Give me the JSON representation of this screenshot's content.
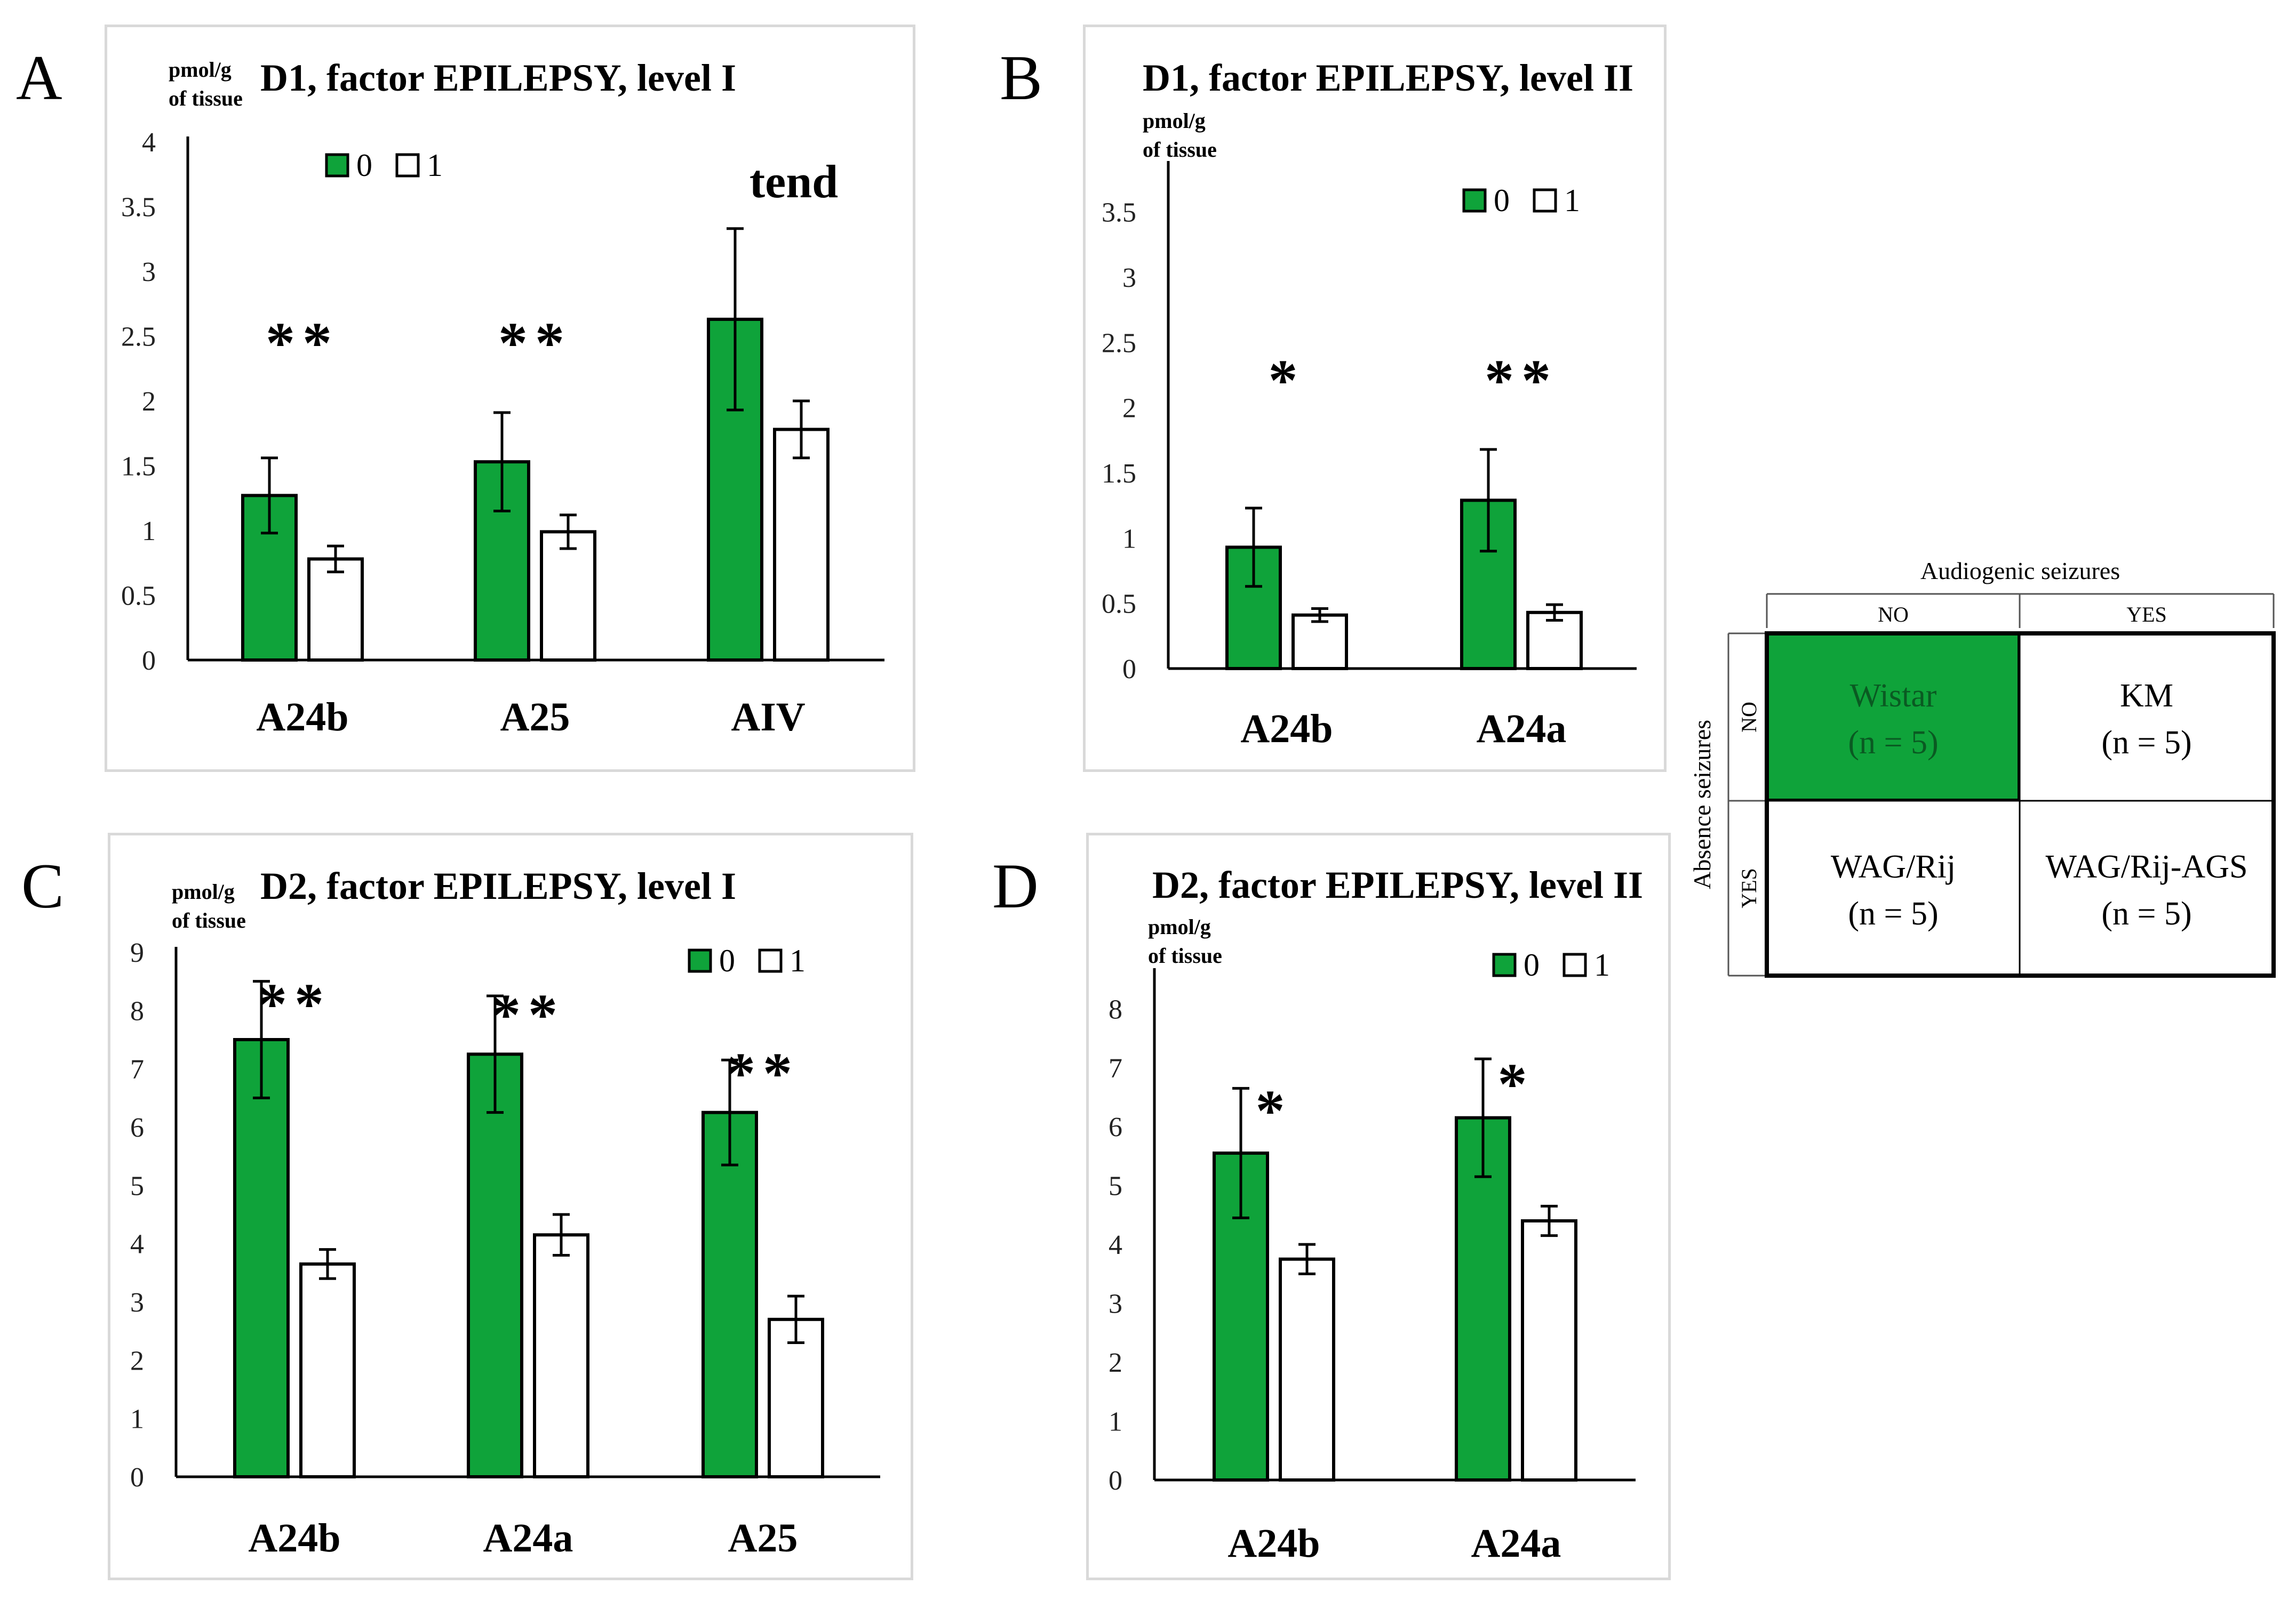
{
  "chart_data": [
    {
      "panel": "A",
      "type": "bar",
      "title": "D1, factor EPILEPSY, level I",
      "ylabel": "pmol/g of tissue",
      "ylabel_lines": [
        "pmol/g",
        "of tissue"
      ],
      "ylim": [
        0,
        4
      ],
      "yticks": [
        "0",
        "0.5",
        "1",
        "1.5",
        "2",
        "2.5",
        "3",
        "3.5",
        "4"
      ],
      "categories": [
        "A24b",
        "A25",
        "AIV"
      ],
      "series": [
        {
          "name": "0",
          "values": [
            1.27,
            1.53,
            2.63
          ],
          "errors": [
            0.29,
            0.38,
            0.7
          ]
        },
        {
          "name": "1",
          "values": [
            0.78,
            0.99,
            1.78
          ],
          "errors": [
            0.1,
            0.13,
            0.22
          ]
        }
      ],
      "annotations": [
        "**",
        "**",
        "tend"
      ],
      "legend": [
        "0",
        "1"
      ],
      "legend_position": "top-left"
    },
    {
      "panel": "B",
      "type": "bar",
      "title": "D1, factor EPILEPSY, level II",
      "ylabel": "pmol/g of tissue",
      "ylabel_lines": [
        "pmol/g",
        "of tissue"
      ],
      "ylim": [
        0,
        3.85
      ],
      "yticks": [
        "0",
        "0.5",
        "1",
        "1.5",
        "2",
        "2.5",
        "3",
        "3.5"
      ],
      "categories": [
        "A24b",
        "A24a"
      ],
      "series": [
        {
          "name": "0",
          "values": [
            0.93,
            1.29
          ],
          "errors": [
            0.3,
            0.39
          ]
        },
        {
          "name": "1",
          "values": [
            0.41,
            0.43
          ],
          "errors": [
            0.05,
            0.06
          ]
        }
      ],
      "annotations": [
        "*",
        "**"
      ],
      "legend": [
        "0",
        "1"
      ],
      "legend_position": "top-right"
    },
    {
      "panel": "C",
      "type": "bar",
      "title": "D2, factor EPILEPSY, level I",
      "ylabel": "pmol/g of tissue",
      "ylabel_lines": [
        "pmol/g",
        "of tissue"
      ],
      "ylim": [
        0,
        9
      ],
      "yticks": [
        "0",
        "1",
        "2",
        "3",
        "4",
        "5",
        "6",
        "7",
        "8",
        "9"
      ],
      "categories": [
        "A24b",
        "A24a",
        "A25"
      ],
      "series": [
        {
          "name": "0",
          "values": [
            7.5,
            7.25,
            6.25
          ],
          "errors": [
            1.0,
            1.0,
            0.9
          ]
        },
        {
          "name": "1",
          "values": [
            3.65,
            4.15,
            2.7
          ],
          "errors": [
            0.25,
            0.35,
            0.4
          ]
        }
      ],
      "annotations": [
        "**",
        "**",
        "**"
      ],
      "legend": [
        "0",
        "1"
      ],
      "legend_position": "top-right"
    },
    {
      "panel": "D",
      "type": "bar",
      "title": "D2, factor EPILEPSY, level II",
      "ylabel": "pmol/g of tissue",
      "ylabel_lines": [
        "pmol/g",
        "of tissue"
      ],
      "ylim": [
        0,
        8.6
      ],
      "yticks": [
        "0",
        "1",
        "2",
        "3",
        "4",
        "5",
        "6",
        "7",
        "8"
      ],
      "categories": [
        "A24b",
        "A24a"
      ],
      "series": [
        {
          "name": "0",
          "values": [
            5.55,
            6.15
          ],
          "errors": [
            1.1,
            1.0
          ]
        },
        {
          "name": "1",
          "values": [
            3.75,
            4.4
          ],
          "errors": [
            0.25,
            0.25
          ]
        }
      ],
      "annotations": [
        "*",
        "*"
      ],
      "legend": [
        "0",
        "1"
      ],
      "legend_position": "top-center"
    },
    {
      "type": "table",
      "column_header": "Audiogenic seizures",
      "columns": [
        "NO",
        "YES"
      ],
      "row_header": "Absence seizures",
      "rows": [
        "NO",
        "YES"
      ],
      "cells": [
        [
          {
            "name": "Wistar",
            "n": "(n = 5)",
            "highlight": true
          },
          {
            "name": "KM",
            "n": "(n = 5)",
            "highlight": false
          }
        ],
        [
          {
            "name": "WAG/Rij",
            "n": "(n = 5)",
            "highlight": false
          },
          {
            "name": "WAG/Rij-AGS",
            "n": "(n = 5)",
            "highlight": false
          }
        ]
      ]
    }
  ],
  "colors": {
    "green": "#0fa33a",
    "white": "#ffffff",
    "frame": "#d9d9d9",
    "axis": "#000000",
    "tick_text": "#222222",
    "wistar_text": "#0a5a22"
  }
}
